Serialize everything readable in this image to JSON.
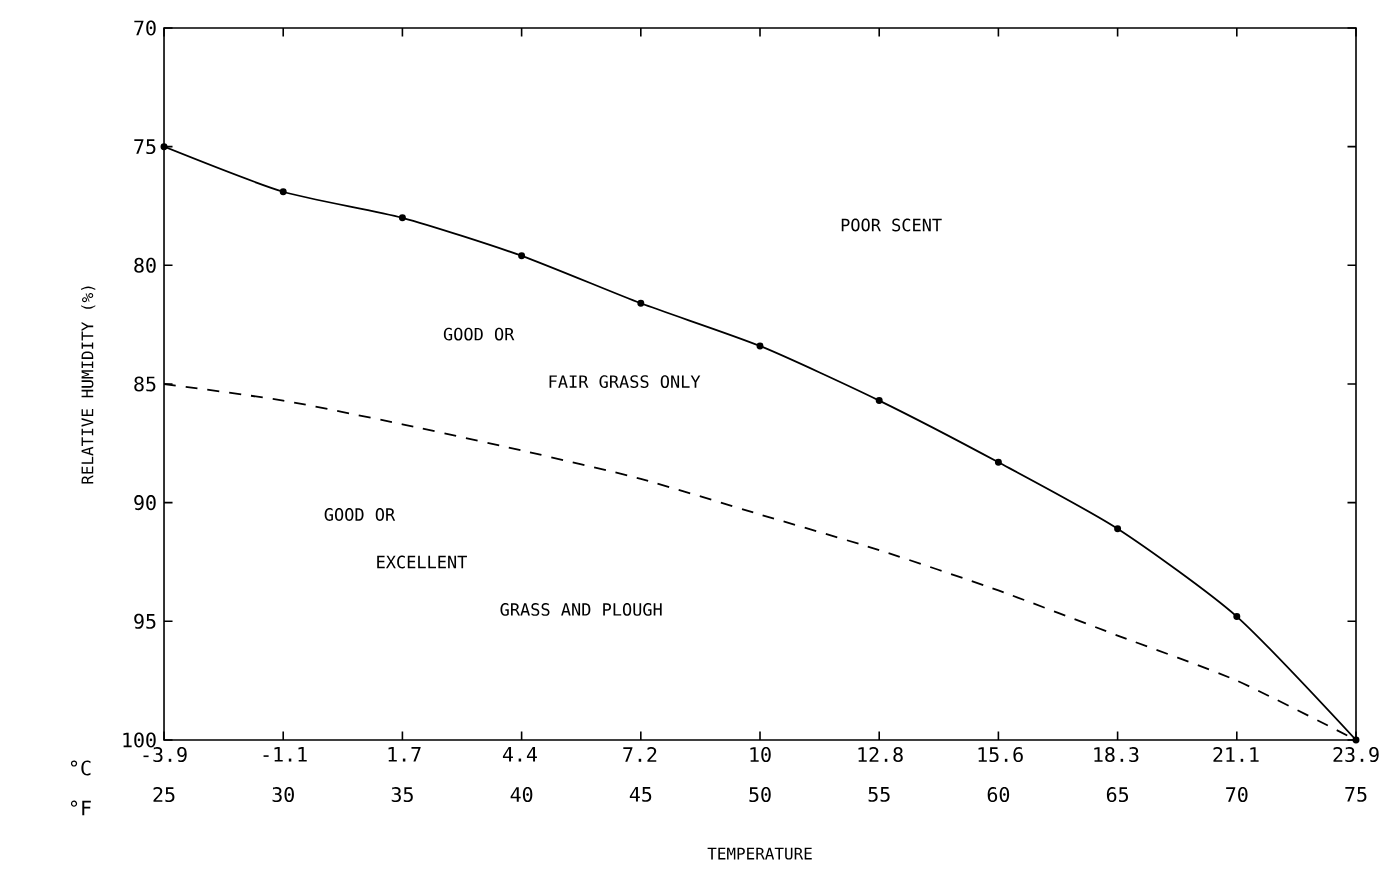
{
  "chart_data": {
    "type": "line",
    "xlabel": "TEMPERATURE",
    "ylabel": "RELATIVE HUMIDITY (%)",
    "x": [
      25,
      30,
      35,
      40,
      45,
      50,
      55,
      60,
      65,
      70,
      75
    ],
    "series": [
      {
        "color": "#000000",
        "marker": "circle",
        "line_style": "solid",
        "values": [
          75,
          76.9,
          78.0,
          79.6,
          81.6,
          83.4,
          85.7,
          88.3,
          91.1,
          94.8,
          100
        ]
      },
      {
        "color": "#000000",
        "marker": "none",
        "line_style": "dashed",
        "values": [
          85,
          85.7,
          86.7,
          87.8,
          89.0,
          90.5,
          92.0,
          93.7,
          95.6,
          97.5,
          100
        ]
      }
    ],
    "xlim": [
      25,
      75
    ],
    "xticks": [
      25,
      30,
      35,
      40,
      45,
      50,
      55,
      60,
      65,
      70,
      75
    ],
    "x2lim": [
      -3.9,
      23.9
    ],
    "x2ticks": [
      -3.9,
      -1.1,
      1.7,
      4.4,
      7.2,
      10,
      12.8,
      15.6,
      18.3,
      21.1,
      23.9
    ],
    "ylim": [
      100,
      70
    ],
    "yticks": [
      70,
      75,
      80,
      85,
      90,
      95,
      100
    ],
    "annotations": [
      "POOR SCENT",
      "GOOD OR",
      "FAIR GRASS ONLY",
      "GOOD OR",
      "EXCELLENT",
      "GRASS AND PLOUGH",
      "°C",
      "°F"
    ],
    "grid": false
  }
}
